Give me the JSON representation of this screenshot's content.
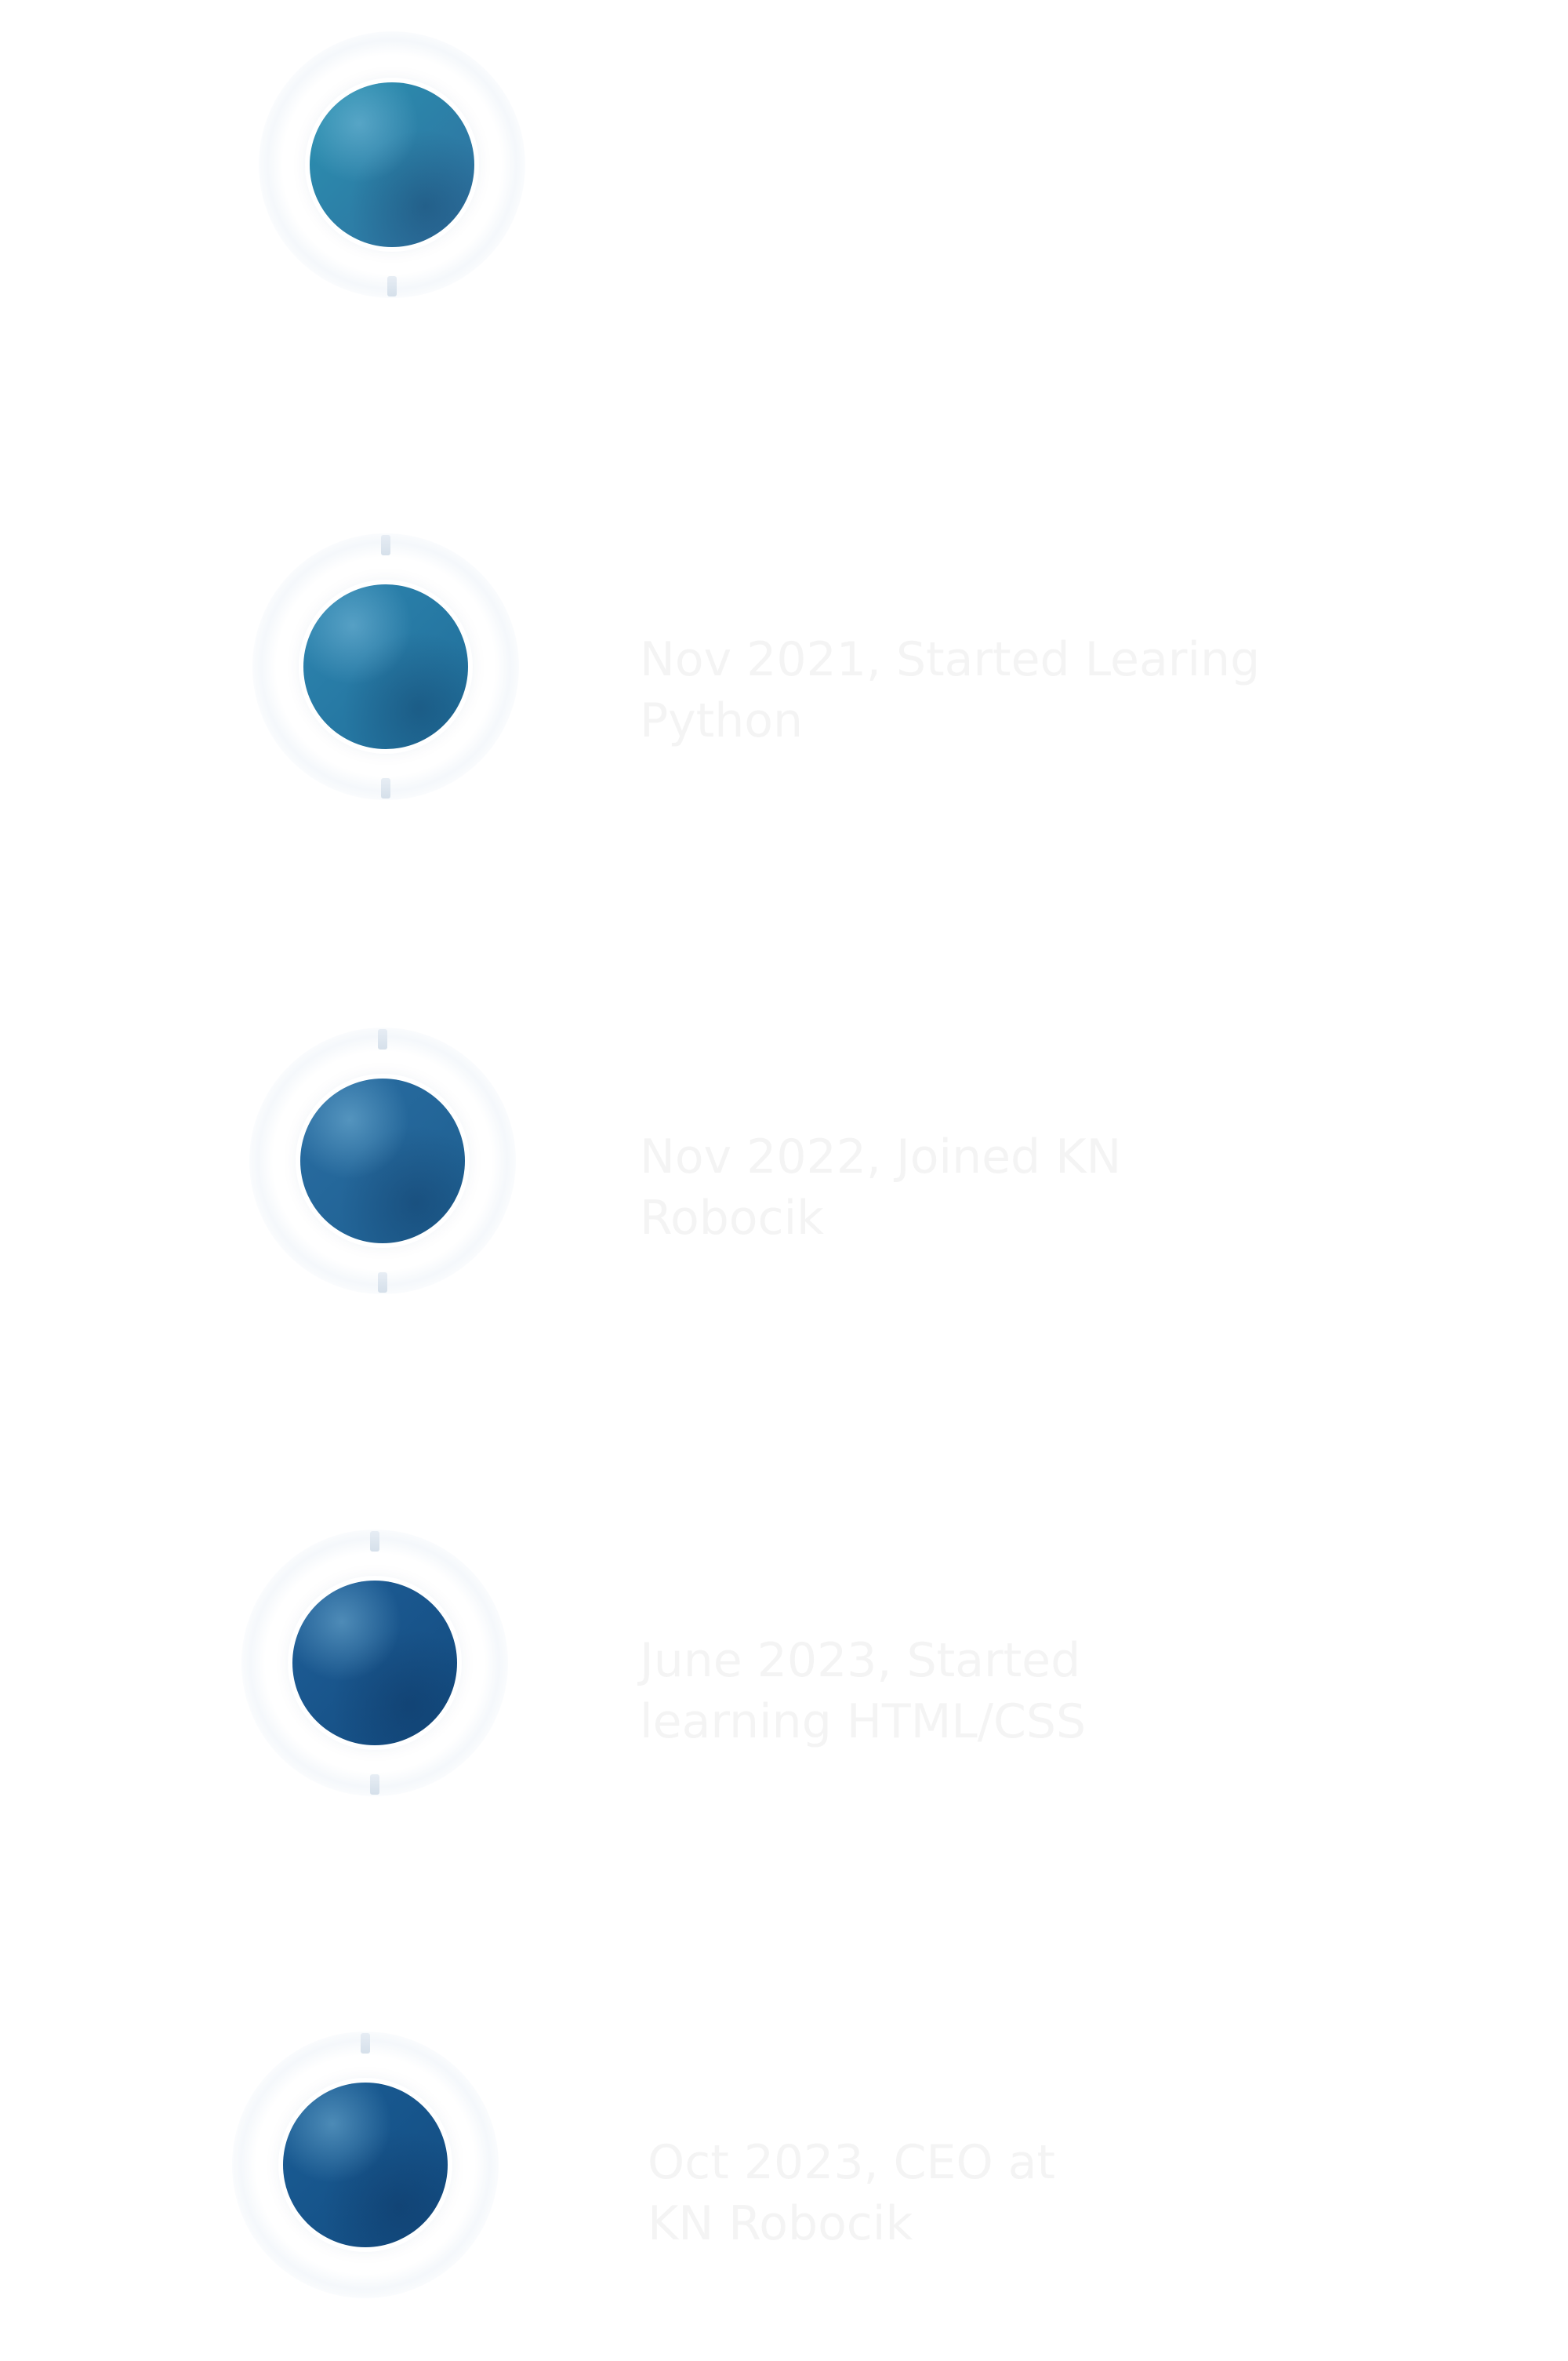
{
  "timeline": {
    "entries": [
      {
        "label": "",
        "dot_color_start": "#2a92b1",
        "dot_color_end": "#2f6e9e"
      },
      {
        "label": "Nov 2021, Started Learing\nPython",
        "dot_color_start": "#2e86b0",
        "dot_color_end": "#1f6c98"
      },
      {
        "label": "Nov 2022, Joined KN\nRobocik",
        "dot_color_start": "#2a6ea3",
        "dot_color_end": "#1d5e8f"
      },
      {
        "label": "June 2023, Started\nlearning HTML/CSS",
        "dot_color_start": "#1f5f98",
        "dot_color_end": "#124a7e"
      },
      {
        "label": "Oct 2023, CEO at\nKN Robocik",
        "dot_color_start": "#1b5e96",
        "dot_color_end": "#124b80"
      }
    ]
  }
}
